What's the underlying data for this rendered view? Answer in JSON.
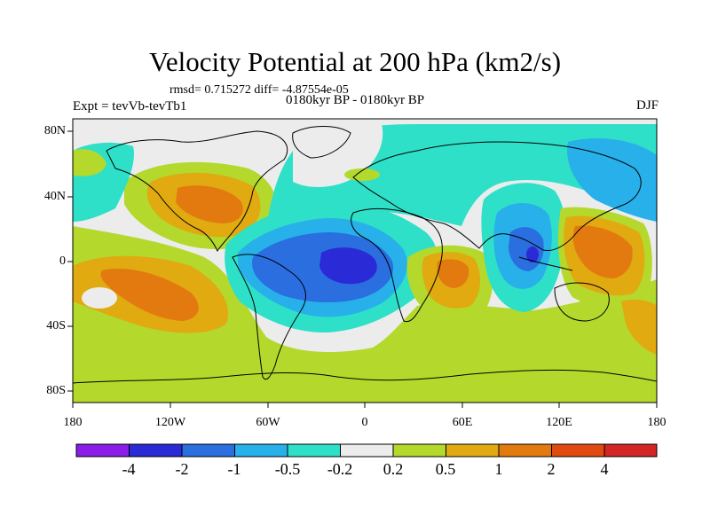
{
  "title": "Velocity Potential at 200 hPa (km2/s)",
  "stats": "rmsd= 0.715272  diff= -4.87554e-05",
  "experiment": "Expt = tevVb-tevTb1",
  "period": "0180kyr BP - 0180kyr BP",
  "season": "DJF",
  "y_axis": {
    "labels": [
      "80N",
      "40N",
      "0",
      "40S",
      "80S"
    ],
    "values": [
      80,
      40,
      0,
      -40,
      -80
    ]
  },
  "x_axis": {
    "labels": [
      "180",
      "120W",
      "60W",
      "0",
      "60E",
      "120E",
      "180"
    ],
    "values": [
      -180,
      -120,
      -60,
      0,
      60,
      120,
      180
    ]
  },
  "colorbar": {
    "labels": [
      "-4",
      "-2",
      "-1",
      "-0.5",
      "-0.2",
      "0.2",
      "0.5",
      "1",
      "2",
      "4"
    ],
    "colors": [
      "#8a1ee6",
      "#2a2ad6",
      "#2a6ee0",
      "#27b0ea",
      "#2ee0c8",
      "#ececec",
      "#b4d82c",
      "#e0aa10",
      "#e27a10",
      "#e04a10",
      "#d42424"
    ]
  },
  "palette": {
    "neutral": "#ececec",
    "pos_weak": "#b4d82c",
    "pos_mid": "#e0aa10",
    "pos_strong": "#e27a10",
    "neg_weak": "#2ee0c8",
    "neg_mid": "#27b0ea",
    "neg_strong": "#2a6ee0",
    "neg_core": "#2a2ad6"
  }
}
